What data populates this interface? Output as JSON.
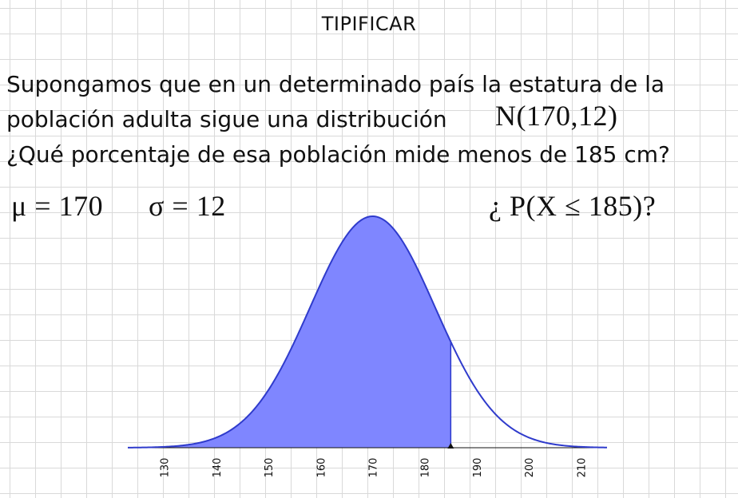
{
  "header": {
    "title": "TIPIFICAR"
  },
  "problem": {
    "line1": "Supongamos que en un determinado país la estatura de la",
    "line2": "población adulta sigue una distribución",
    "line3": "¿Qué porcentaje de esa población mide menos de 185 cm?"
  },
  "formulas": {
    "distribution": "N(170,12)",
    "mu": "μ = 170",
    "sigma": "σ = 12",
    "question": "¿ P(X ≤ 185)?"
  },
  "chart_data": {
    "type": "area",
    "distribution": "normal",
    "mean": 170,
    "sd": 12,
    "shaded_upper_bound": 185,
    "xlim": [
      123,
      215
    ],
    "x_ticks": [
      130,
      140,
      150,
      160,
      170,
      180,
      190,
      200,
      210
    ],
    "x_tick_labels": [
      "130",
      "140",
      "150",
      "160",
      "170",
      "180",
      "190",
      "200",
      "210"
    ],
    "colors": {
      "fill": "#7f86ff",
      "curve": "#2f3bcc",
      "axis": "#111111",
      "grid": "#d9d9d9"
    }
  }
}
